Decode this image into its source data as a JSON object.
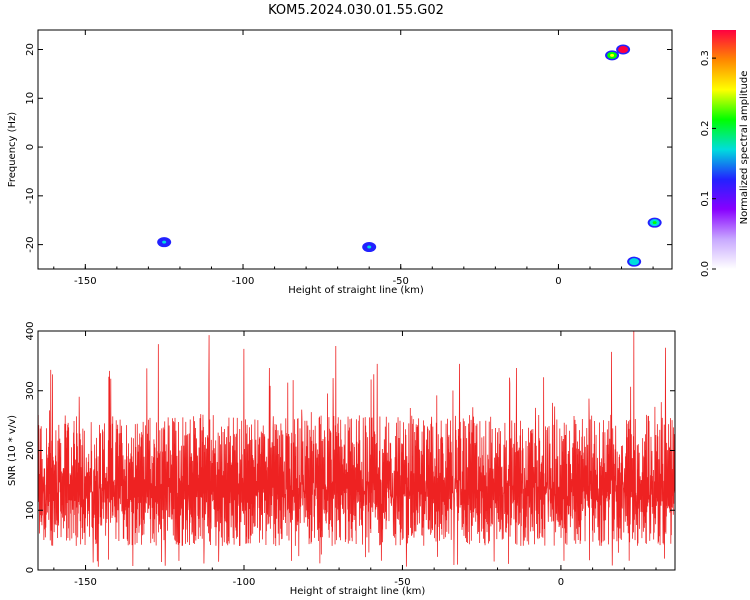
{
  "title": "KOM5.2024.030.01.55.G02",
  "chart_data": [
    {
      "type": "heatmap",
      "xlabel": "Height of straight line (km)",
      "ylabel": "Frequency (Hz)",
      "xlim": [
        -165,
        36
      ],
      "ylim": [
        -25,
        24
      ],
      "xticks": [
        -150,
        -100,
        -50,
        0
      ],
      "yticks": [
        -20,
        -10,
        0,
        10,
        20
      ],
      "colorbar": {
        "label": "Normalized spectral amplitude",
        "range": [
          0.0,
          0.34
        ],
        "ticks": [
          "0.0",
          "0.1",
          "0.2",
          "0.3"
        ],
        "colors": [
          "#ffffff",
          "#c8a8ff",
          "#8800ff",
          "#2222ff",
          "#00dddd",
          "#00ff00",
          "#ffff00",
          "#ff8800",
          "#ff0040"
        ]
      },
      "bright_spots": [
        {
          "x": 20.5,
          "y": 20.0,
          "value": 0.33
        },
        {
          "x": 17.0,
          "y": 18.8,
          "value": 0.2
        },
        {
          "x": 30.5,
          "y": -15.5,
          "value": 0.18
        },
        {
          "x": 24.0,
          "y": -23.5,
          "value": 0.15
        },
        {
          "x": -125.0,
          "y": -19.5,
          "value": 0.14
        },
        {
          "x": -60.0,
          "y": -20.5,
          "value": 0.13
        }
      ],
      "grid": false
    },
    {
      "type": "line",
      "xlabel": "Height of straight line (km)",
      "ylabel": "SNR (10 * v/v)",
      "xlim": [
        -165,
        36
      ],
      "ylim": [
        0,
        400
      ],
      "xticks": [
        -150,
        -100,
        -50,
        0
      ],
      "yticks": [
        0,
        100,
        200,
        300,
        400
      ],
      "series_color": "#ee2222",
      "typical_range": [
        30,
        250
      ],
      "peaks": [
        {
          "x": -161.0,
          "y": 335
        },
        {
          "x": -142.0,
          "y": 320
        },
        {
          "x": -127.0,
          "y": 378
        },
        {
          "x": -111.0,
          "y": 393
        },
        {
          "x": -100.0,
          "y": 370
        },
        {
          "x": -71.0,
          "y": 375
        },
        {
          "x": -58.0,
          "y": 345
        },
        {
          "x": -32.0,
          "y": 345
        },
        {
          "x": -14.0,
          "y": 338
        },
        {
          "x": 16.0,
          "y": 365
        },
        {
          "x": 23.0,
          "y": 400
        },
        {
          "x": 33.0,
          "y": 372
        }
      ],
      "grid": false
    }
  ]
}
